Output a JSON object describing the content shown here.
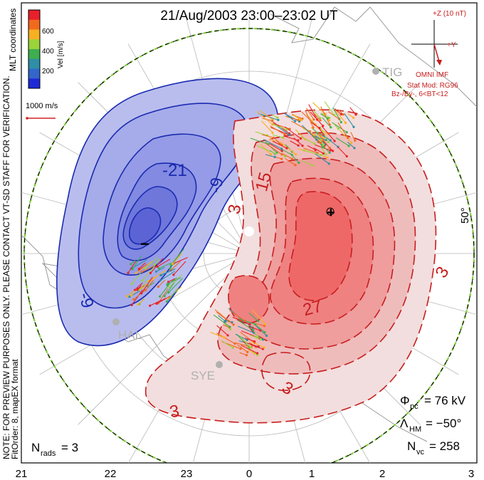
{
  "title": "21/Aug/2003 23:00–23:02 UT",
  "colorbar": {
    "label": "Vel [m/s]",
    "ticks": [
      "600",
      "400",
      "200"
    ],
    "colors": [
      "#e8202a",
      "#f06a1e",
      "#f7b022",
      "#9ad33a",
      "#3fae4f",
      "#2e8fa6",
      "#3366c9",
      "#1f2ad6"
    ]
  },
  "coords_label": "MLT coordinates",
  "scale_label": "1000 m/s",
  "note_line1": "NOTE: FOR PREVIEW PURPOSES ONLY. PLEASE CONTACT VT-SD STAFF FOR VERIFICATION.",
  "note_line2": "FitOrder: 8, mapEX format",
  "imf": {
    "bz_label": "+Z (10 nT)",
    "by_label": "+Y",
    "source": "OMNI IMF",
    "model": "Stat Mod: RG96",
    "condition": "Bz-/By-, 6<BT<12"
  },
  "stations": [
    "TIG",
    "HAL",
    "SYE"
  ],
  "contour_labels": [
    "-21",
    "-9",
    "-9",
    "3",
    "15",
    "27",
    "3",
    "3",
    "3"
  ],
  "lat_label": "50°",
  "extremes": {
    "min_symbol": "−",
    "max_symbol": "+"
  },
  "stats": {
    "phi_pc_label": "Φ",
    "phi_pc_sub": "pc",
    "phi_pc_value": "= 76 kV",
    "lambda_label": "Λ",
    "lambda_sub": "HM",
    "lambda_value": "= −50°",
    "nvc_label": "N",
    "nvc_sub": "vc",
    "nvc_value": "= 258",
    "nrads_label": "N",
    "nrads_sub": "rads",
    "nrads_value": "= 3"
  },
  "mlt_ticks": [
    "21",
    "22",
    "23",
    "0",
    "1",
    "2",
    "3"
  ],
  "colors": {
    "negative_line": "#1a2bb0",
    "positive_line": "#c81e1e",
    "negative_fill": "#6c76e0",
    "positive_fill": "#ec4a4a"
  }
}
